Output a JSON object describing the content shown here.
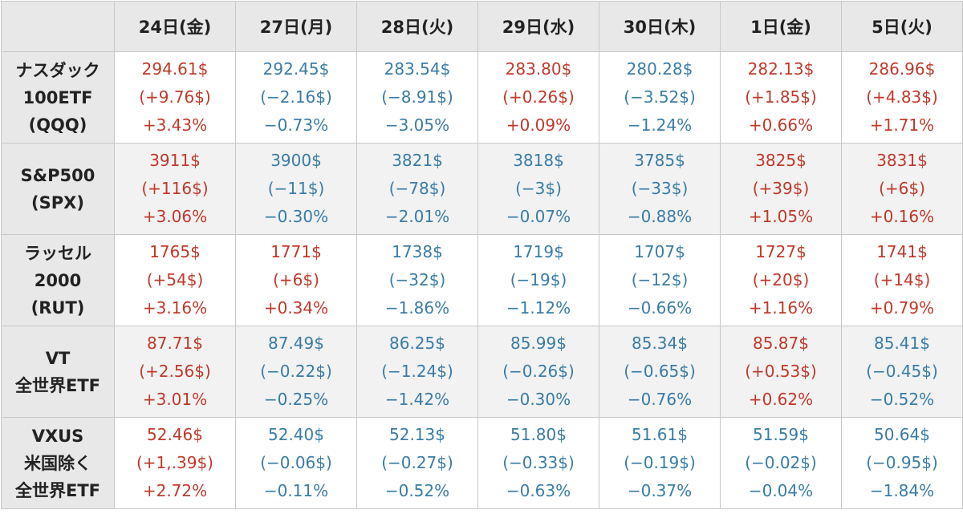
{
  "colors": {
    "up": "#c0392b",
    "down": "#3a7ca5",
    "header_bg": "#e8e8e8",
    "stripe_bg": "#f2f2f2",
    "border": "#c8c8c8"
  },
  "header": {
    "corner": "",
    "days": [
      "24日(金)",
      "27日(月)",
      "28日(火)",
      "29日(水)",
      "30日(木)",
      "1日(金)",
      "5日(火)"
    ]
  },
  "rows": [
    {
      "label": [
        "ナスダック",
        "100ETF",
        "(QQQ)"
      ],
      "cells": [
        {
          "price": "294.61$",
          "change": "(+9.76$)",
          "pct": "+3.43%",
          "dir": "up"
        },
        {
          "price": "292.45$",
          "change": "(−2.16$)",
          "pct": "−0.73%",
          "dir": "down"
        },
        {
          "price": "283.54$",
          "change": "(−8.91$)",
          "pct": "−3.05%",
          "dir": "down"
        },
        {
          "price": "283.80$",
          "change": "(+0.26$)",
          "pct": "+0.09%",
          "dir": "up"
        },
        {
          "price": "280.28$",
          "change": "(−3.52$)",
          "pct": "−1.24%",
          "dir": "down"
        },
        {
          "price": "282.13$",
          "change": "(+1.85$)",
          "pct": "+0.66%",
          "dir": "up"
        },
        {
          "price": "286.96$",
          "change": "(+4.83$)",
          "pct": "+1.71%",
          "dir": "up"
        }
      ]
    },
    {
      "label": [
        "S&P500",
        "(SPX)"
      ],
      "cells": [
        {
          "price": "3911$",
          "change": "(+116$)",
          "pct": "+3.06%",
          "dir": "up"
        },
        {
          "price": "3900$",
          "change": "(−11$)",
          "pct": "−0.30%",
          "dir": "down"
        },
        {
          "price": "3821$",
          "change": "(−78$)",
          "pct": "−2.01%",
          "dir": "down"
        },
        {
          "price": "3818$",
          "change": "(−3$)",
          "pct": "−0.07%",
          "dir": "down"
        },
        {
          "price": "3785$",
          "change": "(−33$)",
          "pct": "−0.88%",
          "dir": "down"
        },
        {
          "price": "3825$",
          "change": "(+39$)",
          "pct": "+1.05%",
          "dir": "up"
        },
        {
          "price": "3831$",
          "change": "(+6$)",
          "pct": "+0.16%",
          "dir": "up"
        }
      ]
    },
    {
      "label": [
        "ラッセル",
        "2000",
        "(RUT)"
      ],
      "cells": [
        {
          "price": "1765$",
          "change": "(+54$)",
          "pct": "+3.16%",
          "dir": "up"
        },
        {
          "price": "1771$",
          "change": "(+6$)",
          "pct": "+0.34%",
          "dir": "up"
        },
        {
          "price": "1738$",
          "change": "(−32$)",
          "pct": "−1.86%",
          "dir": "down"
        },
        {
          "price": "1719$",
          "change": "(−19$)",
          "pct": "−1.12%",
          "dir": "down"
        },
        {
          "price": "1707$",
          "change": "(−12$)",
          "pct": "−0.66%",
          "dir": "down"
        },
        {
          "price": "1727$",
          "change": "(+20$)",
          "pct": "+1.16%",
          "dir": "up"
        },
        {
          "price": "1741$",
          "change": "(+14$)",
          "pct": "+0.79%",
          "dir": "up"
        }
      ]
    },
    {
      "label": [
        "VT",
        "全世界ETF"
      ],
      "cells": [
        {
          "price": "87.71$",
          "change": "(+2.56$)",
          "pct": "+3.01%",
          "dir": "up"
        },
        {
          "price": "87.49$",
          "change": "(−0.22$)",
          "pct": "−0.25%",
          "dir": "down"
        },
        {
          "price": "86.25$",
          "change": "(−1.24$)",
          "pct": "−1.42%",
          "dir": "down"
        },
        {
          "price": "85.99$",
          "change": "(−0.26$)",
          "pct": "−0.30%",
          "dir": "down"
        },
        {
          "price": "85.34$",
          "change": "(−0.65$)",
          "pct": "−0.76%",
          "dir": "down"
        },
        {
          "price": "85.87$",
          "change": "(+0.53$)",
          "pct": "+0.62%",
          "dir": "up"
        },
        {
          "price": "85.41$",
          "change": "(−0.45$)",
          "pct": "−0.52%",
          "dir": "down"
        }
      ]
    },
    {
      "label": [
        "VXUS",
        "米国除く",
        "全世界ETF"
      ],
      "cells": [
        {
          "price": "52.46$",
          "change": "(+1,.39$)",
          "pct": "+2.72%",
          "dir": "up"
        },
        {
          "price": "52.40$",
          "change": "(−0.06$)",
          "pct": "−0.11%",
          "dir": "down"
        },
        {
          "price": "52.13$",
          "change": "(−0.27$)",
          "pct": "−0.52%",
          "dir": "down"
        },
        {
          "price": "51.80$",
          "change": "(−0.33$)",
          "pct": "−0.63%",
          "dir": "down"
        },
        {
          "price": "51.61$",
          "change": "(−0.19$)",
          "pct": "−0.37%",
          "dir": "down"
        },
        {
          "price": "51.59$",
          "change": "(−0.02$)",
          "pct": "−0.04%",
          "dir": "down"
        },
        {
          "price": "50.64$",
          "change": "(−0.95$)",
          "pct": "−1.84%",
          "dir": "down"
        }
      ]
    }
  ]
}
